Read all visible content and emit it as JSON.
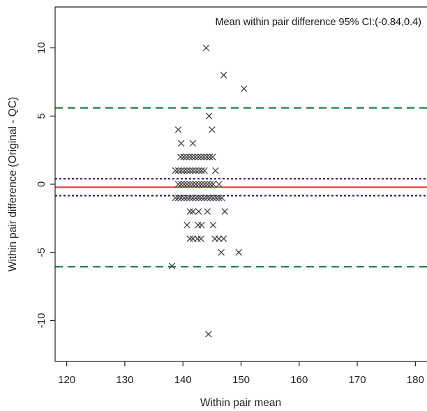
{
  "chart_data": {
    "type": "scatter",
    "title": "",
    "xlabel": "Within pair mean",
    "ylabel": "Within pair difference (Original - QC)",
    "annotation": "Mean within pair difference 95% CI:(-0.84,0.4)",
    "xlim": [
      118,
      182
    ],
    "ylim": [
      -13,
      13
    ],
    "xticks": [
      120,
      130,
      140,
      150,
      160,
      170,
      180
    ],
    "yticks": [
      -10,
      -5,
      0,
      5,
      10
    ],
    "marker": "x",
    "grid": false,
    "legend": "none",
    "reference_lines": [
      {
        "name": "mean difference",
        "y": -0.22,
        "style": "solid",
        "color": "#e8413c"
      },
      {
        "name": "95% CI upper",
        "y": 0.4,
        "style": "dotted",
        "color": "#1f1f7a"
      },
      {
        "name": "95% CI lower",
        "y": -0.84,
        "style": "dotted",
        "color": "#1f1f7a"
      },
      {
        "name": "upper limit of agreement",
        "y": 5.6,
        "style": "dashed",
        "color": "#1e8a4c"
      },
      {
        "name": "lower limit of agreement",
        "y": -6.05,
        "style": "dashed",
        "color": "#1e8a4c"
      }
    ],
    "points": [
      [
        144,
        10
      ],
      [
        147,
        8
      ],
      [
        150.5,
        7
      ],
      [
        144.5,
        5
      ],
      [
        139.2,
        4
      ],
      [
        145,
        4
      ],
      [
        139.7,
        3
      ],
      [
        141.7,
        3
      ],
      [
        139.6,
        2
      ],
      [
        140.1,
        2
      ],
      [
        140.6,
        2
      ],
      [
        141.1,
        2
      ],
      [
        141.6,
        2
      ],
      [
        142.1,
        2
      ],
      [
        142.6,
        2
      ],
      [
        143.1,
        2
      ],
      [
        143.6,
        2
      ],
      [
        144.1,
        2
      ],
      [
        144.6,
        2
      ],
      [
        145.1,
        2
      ],
      [
        138.7,
        1
      ],
      [
        139.2,
        1
      ],
      [
        139.7,
        1
      ],
      [
        140.2,
        1
      ],
      [
        140.7,
        1
      ],
      [
        141.2,
        1
      ],
      [
        141.7,
        1
      ],
      [
        142.2,
        1
      ],
      [
        142.7,
        1
      ],
      [
        143.2,
        1
      ],
      [
        143.7,
        1
      ],
      [
        145.6,
        1
      ],
      [
        139.2,
        0
      ],
      [
        139.7,
        0
      ],
      [
        140.2,
        0
      ],
      [
        140.7,
        0
      ],
      [
        141.2,
        0
      ],
      [
        141.7,
        0
      ],
      [
        142.2,
        0
      ],
      [
        142.7,
        0
      ],
      [
        143.2,
        0
      ],
      [
        143.7,
        0
      ],
      [
        144.2,
        0
      ],
      [
        144.7,
        0
      ],
      [
        145.2,
        0
      ],
      [
        146.2,
        0
      ],
      [
        138.7,
        -1
      ],
      [
        139.2,
        -1
      ],
      [
        139.7,
        -1
      ],
      [
        140.2,
        -1
      ],
      [
        140.7,
        -1
      ],
      [
        141.2,
        -1
      ],
      [
        141.7,
        -1
      ],
      [
        142.2,
        -1
      ],
      [
        142.7,
        -1
      ],
      [
        143.2,
        -1
      ],
      [
        143.7,
        -1
      ],
      [
        144.2,
        -1
      ],
      [
        144.7,
        -1
      ],
      [
        145.2,
        -1
      ],
      [
        145.7,
        -1
      ],
      [
        146.2,
        -1
      ],
      [
        146.7,
        -1
      ],
      [
        141.2,
        -2
      ],
      [
        141.7,
        -2
      ],
      [
        142.7,
        -2
      ],
      [
        144.2,
        -2
      ],
      [
        147.2,
        -2
      ],
      [
        140.7,
        -3
      ],
      [
        142.6,
        -3
      ],
      [
        143.2,
        -3
      ],
      [
        145.2,
        -3
      ],
      [
        141.2,
        -4
      ],
      [
        141.7,
        -4
      ],
      [
        142.5,
        -4
      ],
      [
        143.1,
        -4
      ],
      [
        145.5,
        -4
      ],
      [
        146.2,
        -4
      ],
      [
        147,
        -4
      ],
      [
        146.6,
        -5
      ],
      [
        149.6,
        -5
      ],
      [
        138.1,
        -6
      ],
      [
        144.4,
        -11
      ]
    ]
  }
}
